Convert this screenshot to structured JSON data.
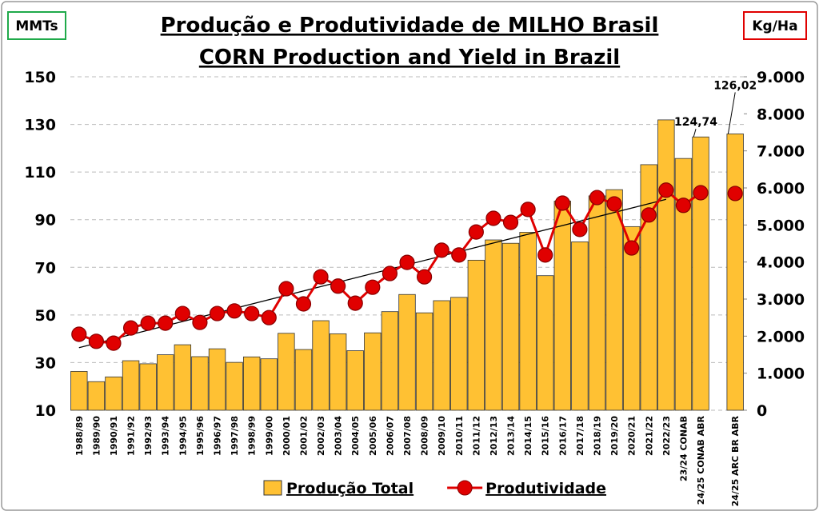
{
  "chart_data": {
    "type": "bar",
    "title": "Produção e Produtividade de MILHO Brasil",
    "subtitle": "CORN Production and Yield in Brazil",
    "y_label": "MMTs",
    "y2_label": "Kg/Ha",
    "categories": [
      "1988/89",
      "1989/90",
      "1990/91",
      "1991/92",
      "1992/93",
      "1993/94",
      "1994/95",
      "1995/96",
      "1996/97",
      "1997/98",
      "1998/99",
      "1999/00",
      "2000/01",
      "2001/02",
      "2002/03",
      "2003/04",
      "2004/05",
      "2005/06",
      "2006/07",
      "2007/08",
      "2008/09",
      "2009/10",
      "2010/11",
      "2011/12",
      "2012/13",
      "2013/14",
      "2014/15",
      "2015/16",
      "2016/17",
      "2017/18",
      "2018/19",
      "2019/20",
      "2020/21",
      "2021/22",
      "2022/23",
      "23/24 CONAB",
      "24/25 CONAB ABR",
      null,
      "24/25 ARC BR ABR"
    ],
    "series": [
      {
        "name": "Produção Total",
        "type": "bar",
        "color": "#FFC133",
        "values": [
          26.3,
          22,
          24,
          30.8,
          29.5,
          33.3,
          37.5,
          32.5,
          35.8,
          30.1,
          32.4,
          31.6,
          42.3,
          35.5,
          47.6,
          42.1,
          35,
          42.5,
          51.4,
          58.6,
          50.9,
          56,
          57.4,
          73,
          81.5,
          80.1,
          84.7,
          66.5,
          97.8,
          80.7,
          100,
          102.6,
          87.1,
          113.1,
          131.9,
          115.7,
          124.74,
          null,
          126.02
        ],
        "value_labels": [
          null,
          null,
          null,
          null,
          null,
          null,
          null,
          null,
          null,
          null,
          null,
          null,
          null,
          null,
          null,
          null,
          null,
          null,
          null,
          null,
          null,
          null,
          null,
          null,
          null,
          null,
          null,
          null,
          null,
          null,
          null,
          null,
          null,
          null,
          null,
          null,
          "124,74",
          null,
          "126,02"
        ]
      },
      {
        "name": "Produtividade",
        "type": "line",
        "axis": "y2",
        "color": "#E00000",
        "values": [
          2050,
          1860,
          1810,
          2220,
          2350,
          2350,
          2610,
          2370,
          2610,
          2680,
          2610,
          2500,
          3280,
          2870,
          3600,
          3350,
          2890,
          3320,
          3690,
          3990,
          3600,
          4320,
          4190,
          4810,
          5180,
          5070,
          5420,
          4190,
          5590,
          4880,
          5740,
          5570,
          4380,
          5270,
          5940,
          5530,
          5870,
          null,
          5850
        ],
        "trendline": true
      }
    ],
    "ylim": [
      10,
      150
    ],
    "yticks": [
      10,
      30,
      50,
      70,
      90,
      110,
      130,
      150
    ],
    "y2lim": [
      0,
      9000
    ],
    "y2ticks": [
      {
        "value": 0,
        "label": "0"
      },
      {
        "value": 1000,
        "label": "1.000"
      },
      {
        "value": 2000,
        "label": "2.000"
      },
      {
        "value": 3000,
        "label": "3.000"
      },
      {
        "value": 4000,
        "label": "4.000"
      },
      {
        "value": 5000,
        "label": "5.000"
      },
      {
        "value": 6000,
        "label": "6.000"
      },
      {
        "value": 7000,
        "label": "7.000"
      },
      {
        "value": 8000,
        "label": "8.000"
      },
      {
        "value": 9000,
        "label": "9.000"
      }
    ],
    "grid": true,
    "legend": "bottom"
  }
}
